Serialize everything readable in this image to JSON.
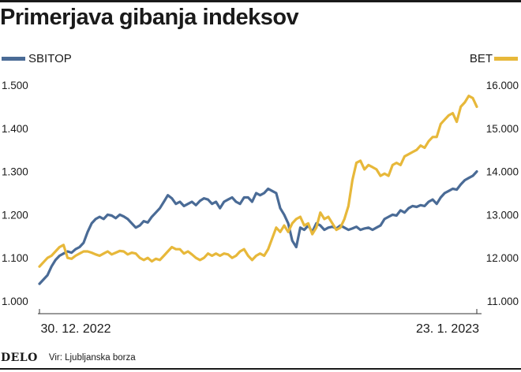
{
  "header": {
    "title": "Primerjava gibanja indeksov"
  },
  "footer": {
    "brand": "DELO",
    "source": "Vir: Ljubljanska borza"
  },
  "colors": {
    "sbitop": "#4a6b96",
    "bet": "#e7b83a",
    "text": "#1a1a1a",
    "axis": "#333333"
  },
  "chart_data": {
    "type": "line",
    "title": "Primerjava gibanja indeksov",
    "x_labels": [
      "30. 12. 2022",
      "23. 1. 2023"
    ],
    "grid": false,
    "legend": {
      "left": "SBITOP",
      "right": "BET"
    },
    "left_axis": {
      "series": "SBITOP",
      "ticks": [
        "1.000",
        "1.100",
        "1.200",
        "1.300",
        "1.400",
        "1.500"
      ],
      "range": [
        1000,
        1500
      ]
    },
    "right_axis": {
      "series": "BET",
      "ticks": [
        "11.000",
        "12.000",
        "13.000",
        "14.000",
        "15.000",
        "16.000"
      ],
      "range": [
        11000,
        16000
      ]
    },
    "series": [
      {
        "name": "SBITOP",
        "axis": "left",
        "color": "#4a6b96",
        "values": [
          1040,
          1050,
          1060,
          1080,
          1095,
          1105,
          1110,
          1115,
          1112,
          1120,
          1125,
          1135,
          1160,
          1180,
          1190,
          1195,
          1190,
          1200,
          1198,
          1192,
          1200,
          1196,
          1190,
          1180,
          1170,
          1175,
          1185,
          1182,
          1195,
          1205,
          1215,
          1230,
          1245,
          1238,
          1225,
          1230,
          1220,
          1225,
          1230,
          1222,
          1232,
          1238,
          1235,
          1225,
          1230,
          1215,
          1230,
          1235,
          1240,
          1230,
          1225,
          1240,
          1240,
          1230,
          1250,
          1245,
          1250,
          1260,
          1255,
          1250,
          1215,
          1200,
          1180,
          1140,
          1125,
          1170,
          1165,
          1175,
          1160,
          1180,
          1175,
          1165,
          1170,
          1172,
          1168,
          1175,
          1170,
          1165,
          1168,
          1172,
          1165,
          1168,
          1170,
          1165,
          1170,
          1175,
          1190,
          1195,
          1200,
          1198,
          1210,
          1205,
          1215,
          1220,
          1218,
          1222,
          1220,
          1230,
          1235,
          1225,
          1240,
          1250,
          1255,
          1260,
          1258,
          1270,
          1280,
          1285,
          1290,
          1300
        ]
      },
      {
        "name": "BET",
        "axis": "right",
        "color": "#e7b83a",
        "values": [
          11800,
          11900,
          12000,
          12050,
          12150,
          12250,
          12300,
          12000,
          11980,
          12050,
          12100,
          12150,
          12150,
          12120,
          12080,
          12050,
          12100,
          12150,
          12080,
          12120,
          12160,
          12150,
          12080,
          12120,
          12100,
          12000,
          11950,
          12000,
          11920,
          11980,
          11950,
          12050,
          12150,
          12250,
          12200,
          12200,
          12100,
          12150,
          12080,
          12000,
          11950,
          12000,
          12100,
          12050,
          12100,
          12050,
          12100,
          12080,
          12000,
          12050,
          12150,
          12200,
          12050,
          11950,
          12050,
          12100,
          12050,
          12200,
          12450,
          12700,
          12600,
          12750,
          12600,
          12800,
          12900,
          12950,
          12750,
          12800,
          12550,
          12700,
          13050,
          12900,
          12950,
          12800,
          12650,
          12700,
          12900,
          13200,
          13800,
          14200,
          14250,
          14050,
          14150,
          14100,
          14050,
          13900,
          13950,
          13900,
          14150,
          14200,
          14150,
          14350,
          14400,
          14450,
          14500,
          14600,
          14550,
          14700,
          14800,
          14800,
          15100,
          15200,
          15300,
          15350,
          15150,
          15500,
          15600,
          15750,
          15700,
          15500
        ]
      }
    ]
  }
}
